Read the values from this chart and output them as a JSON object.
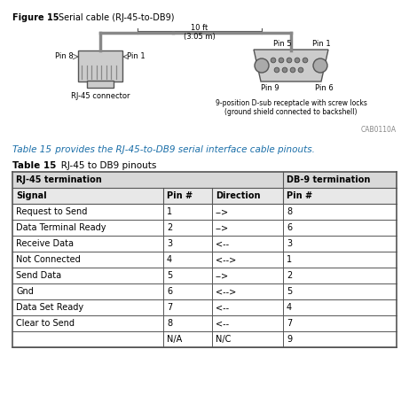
{
  "figure_label": "Figure 15",
  "figure_title": "Serial cable (RJ-45-to-DB9)",
  "distance_label": "10 ft\n(3.05 m)",
  "rj45_label": "RJ-45 connector",
  "db9_label": "9-position D-sub receptacle with screw locks\n(ground shield connected to backshell)",
  "catalog_number": "CAB0110A",
  "rj45_pins_left": "Pin 8",
  "rj45_pins_right": "Pin 1",
  "db9_pin_top_left": "Pin 5",
  "db9_pin_top_right": "Pin 1",
  "db9_pin_bot_left": "Pin 9",
  "db9_pin_bot_right": "Pin 6",
  "ref_text_blue": "Table 15",
  "ref_text_rest": " provides the RJ-45-to-DB9 serial interface cable pinouts.",
  "table_title_bold": "Table 15",
  "table_title_rest": "   RJ-45 to DB9 pinouts",
  "header_row1_left": "RJ-45 termination",
  "header_row1_right": "DB-9 termination",
  "header_row2": [
    "Signal",
    "Pin #",
    "Direction",
    "Pin #"
  ],
  "rows": [
    [
      "Request to Send",
      "1",
      "-->",
      "8"
    ],
    [
      "Data Terminal Ready",
      "2",
      "-->",
      "6"
    ],
    [
      "Receive Data",
      "3",
      "<--",
      "3"
    ],
    [
      "Not Connected",
      "4",
      "<-->",
      "1"
    ],
    [
      "Send Data",
      "5",
      "-->",
      "2"
    ],
    [
      "Gnd",
      "6",
      "<-->",
      "5"
    ],
    [
      "Data Set Ready",
      "7",
      "<--",
      "4"
    ],
    [
      "Clear to Send",
      "8",
      "<--",
      "7"
    ],
    [
      "",
      "N/A",
      "N/C",
      "9"
    ]
  ],
  "bg_color": "#ffffff",
  "text_color": "#000000",
  "blue_color": "#1a6ea8",
  "gray_line": "#555555",
  "connector_fill": "#cccccc",
  "connector_dark": "#888888"
}
